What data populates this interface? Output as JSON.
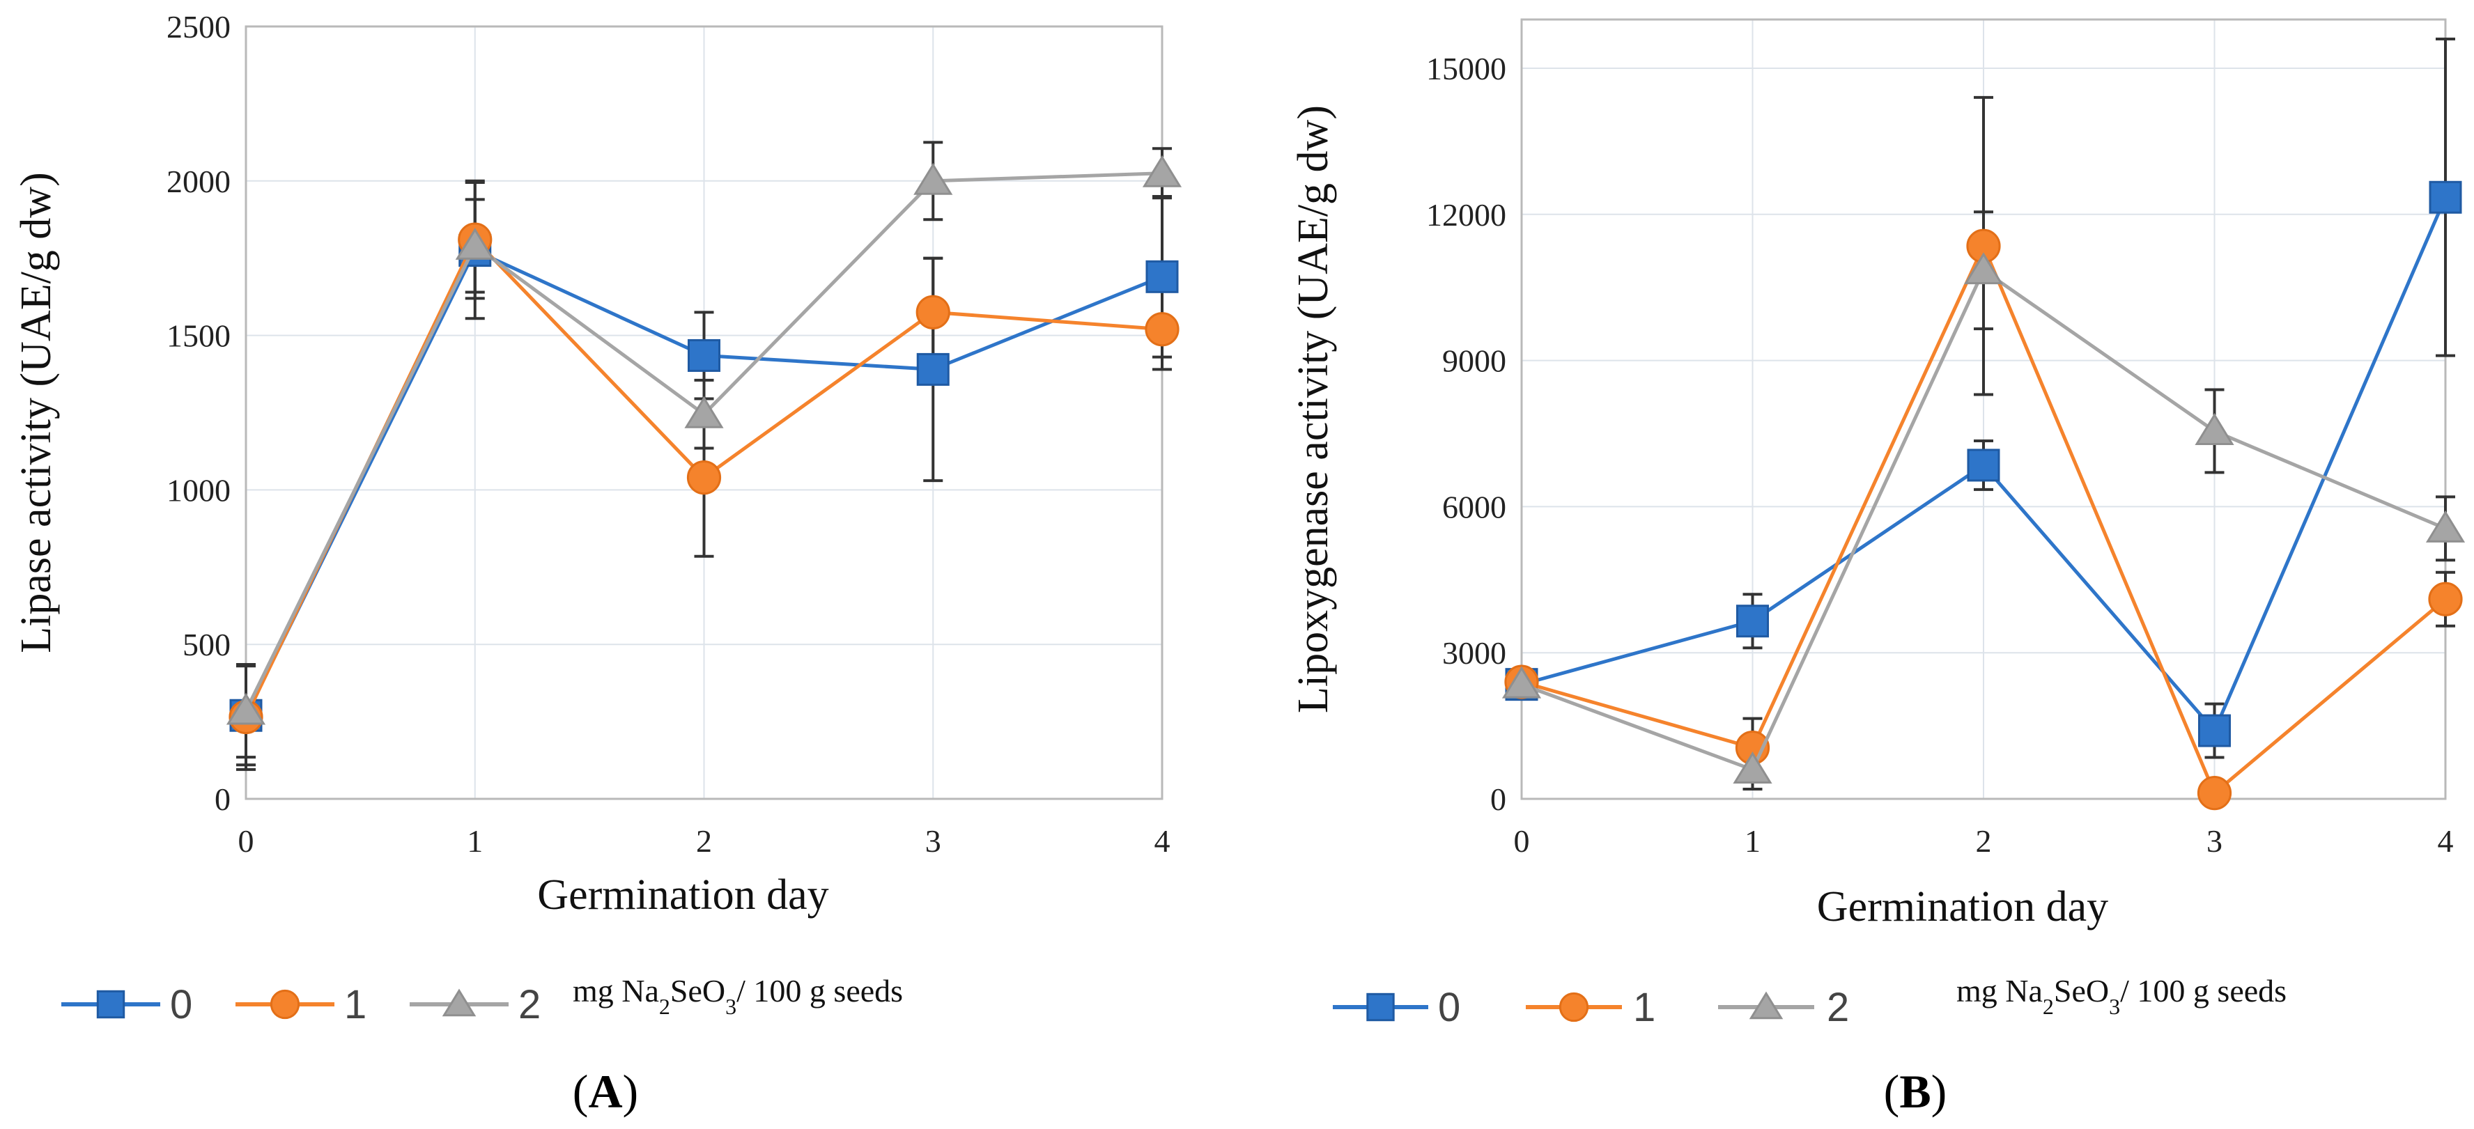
{
  "chart_data": [
    {
      "type": "line",
      "panel_label": "A",
      "xlabel": "Germination day",
      "ylabel": "Lipase activity (UAE/g dw)",
      "x": [
        0,
        1,
        2,
        3,
        4
      ],
      "x_ticks": [
        "0",
        "1",
        "2",
        "3",
        "4"
      ],
      "y_ticks": [
        "0",
        "500",
        "1000",
        "1500",
        "2000",
        "2500"
      ],
      "ylim": [
        0,
        2500
      ],
      "grid": true,
      "legend_unit_prefix": "mg Na",
      "legend_unit_sub1": "2",
      "legend_unit_mid": "SeO",
      "legend_unit_sub2": "3",
      "legend_unit_suffix": "/ 100 g seeds",
      "series": [
        {
          "name": "0",
          "color": "#2e75c9",
          "marker": "square",
          "values": [
            270,
            1775,
            1435,
            1390,
            1690
          ],
          "errors": [
            160,
            220,
            140,
            360,
            260
          ]
        },
        {
          "name": "1",
          "color": "#f5832c",
          "marker": "circle",
          "values": [
            265,
            1810,
            1040,
            1575,
            1520
          ],
          "errors": [
            170,
            190,
            255,
            175,
            130
          ]
        },
        {
          "name": "2",
          "color": "#a5a5a5",
          "marker": "triangle",
          "values": [
            285,
            1790,
            1245,
            2000,
            2025
          ],
          "errors": [
            150,
            150,
            110,
            125,
            80
          ]
        }
      ]
    },
    {
      "type": "line",
      "panel_label": "B",
      "xlabel": "Germination day",
      "ylabel": "Lipoxygenase  activity (UAE/g  dw)",
      "x": [
        0,
        1,
        2,
        3,
        4
      ],
      "x_ticks": [
        "0",
        "1",
        "2",
        "3",
        "4"
      ],
      "y_ticks": [
        "0",
        "3000",
        "6000",
        "9000",
        "12000",
        "15000"
      ],
      "ylim": [
        0,
        16000
      ],
      "grid": true,
      "legend_unit_prefix": "mg Na",
      "legend_unit_sub1": "2",
      "legend_unit_mid": "SeO",
      "legend_unit_sub2": "3",
      "legend_unit_suffix": "/ 100 g seeds",
      "series": [
        {
          "name": "0",
          "color": "#2e75c9",
          "marker": "square",
          "values": [
            2350,
            3650,
            6850,
            1400,
            12350
          ],
          "errors": [
            200,
            550,
            500,
            550,
            3250
          ]
        },
        {
          "name": "1",
          "color": "#f5832c",
          "marker": "circle",
          "values": [
            2400,
            1050,
            11350,
            120,
            4100
          ],
          "errors": [
            250,
            600,
            3050,
            0,
            550
          ]
        },
        {
          "name": "2",
          "color": "#a5a5a5",
          "marker": "triangle",
          "values": [
            2350,
            600,
            10850,
            7550,
            5550
          ],
          "errors": [
            200,
            400,
            1200,
            850,
            650
          ]
        }
      ]
    }
  ]
}
